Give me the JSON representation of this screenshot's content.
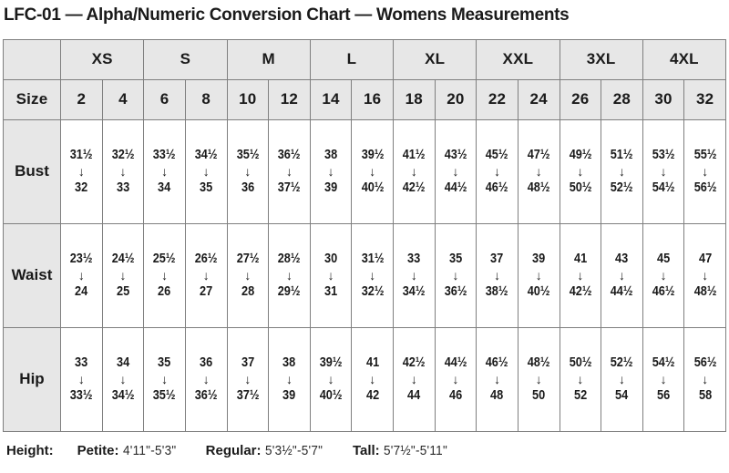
{
  "title": "LFC-01 — Alpha/Numeric Conversion Chart — Womens Measurements",
  "table": {
    "size_label": "Size",
    "arrow": "↓",
    "alpha_sizes": [
      "XS",
      "S",
      "M",
      "L",
      "XL",
      "XXL",
      "3XL",
      "4XL"
    ],
    "numeric_sizes": [
      "2",
      "4",
      "6",
      "8",
      "10",
      "12",
      "14",
      "16",
      "18",
      "20",
      "22",
      "24",
      "26",
      "28",
      "30",
      "32"
    ],
    "rows": [
      {
        "label": "Bust",
        "cells": [
          {
            "from": "31½",
            "to": "32"
          },
          {
            "from": "32½",
            "to": "33"
          },
          {
            "from": "33½",
            "to": "34"
          },
          {
            "from": "34½",
            "to": "35"
          },
          {
            "from": "35½",
            "to": "36"
          },
          {
            "from": "36½",
            "to": "37½"
          },
          {
            "from": "38",
            "to": "39"
          },
          {
            "from": "39½",
            "to": "40½"
          },
          {
            "from": "41½",
            "to": "42½"
          },
          {
            "from": "43½",
            "to": "44½"
          },
          {
            "from": "45½",
            "to": "46½"
          },
          {
            "from": "47½",
            "to": "48½"
          },
          {
            "from": "49½",
            "to": "50½"
          },
          {
            "from": "51½",
            "to": "52½"
          },
          {
            "from": "53½",
            "to": "54½"
          },
          {
            "from": "55½",
            "to": "56½"
          }
        ]
      },
      {
        "label": "Waist",
        "cells": [
          {
            "from": "23½",
            "to": "24"
          },
          {
            "from": "24½",
            "to": "25"
          },
          {
            "from": "25½",
            "to": "26"
          },
          {
            "from": "26½",
            "to": "27"
          },
          {
            "from": "27½",
            "to": "28"
          },
          {
            "from": "28½",
            "to": "29½"
          },
          {
            "from": "30",
            "to": "31"
          },
          {
            "from": "31½",
            "to": "32½"
          },
          {
            "from": "33",
            "to": "34½"
          },
          {
            "from": "35",
            "to": "36½"
          },
          {
            "from": "37",
            "to": "38½"
          },
          {
            "from": "39",
            "to": "40½"
          },
          {
            "from": "41",
            "to": "42½"
          },
          {
            "from": "43",
            "to": "44½"
          },
          {
            "from": "45",
            "to": "46½"
          },
          {
            "from": "47",
            "to": "48½"
          }
        ]
      },
      {
        "label": "Hip",
        "cells": [
          {
            "from": "33",
            "to": "33½"
          },
          {
            "from": "34",
            "to": "34½"
          },
          {
            "from": "35",
            "to": "35½"
          },
          {
            "from": "36",
            "to": "36½"
          },
          {
            "from": "37",
            "to": "37½"
          },
          {
            "from": "38",
            "to": "39"
          },
          {
            "from": "39½",
            "to": "40½"
          },
          {
            "from": "41",
            "to": "42"
          },
          {
            "from": "42½",
            "to": "44"
          },
          {
            "from": "44½",
            "to": "46"
          },
          {
            "from": "46½",
            "to": "48"
          },
          {
            "from": "48½",
            "to": "50"
          },
          {
            "from": "50½",
            "to": "52"
          },
          {
            "from": "52½",
            "to": "54"
          },
          {
            "from": "54½",
            "to": "56"
          },
          {
            "from": "56½",
            "to": "58"
          }
        ]
      }
    ]
  },
  "footer": {
    "height_label": "Height:",
    "segments": [
      {
        "label": "Petite:",
        "value": "4'11\"-5'3\""
      },
      {
        "label": "Regular:",
        "value": "5'3½\"-5'7\""
      },
      {
        "label": "Tall:",
        "value": "5'7½\"-5'11\""
      }
    ]
  },
  "colors": {
    "header_background": "#e7e7e7",
    "border": "#7f7f7f",
    "text": "#1a1a1a",
    "cell_background": "#ffffff"
  }
}
